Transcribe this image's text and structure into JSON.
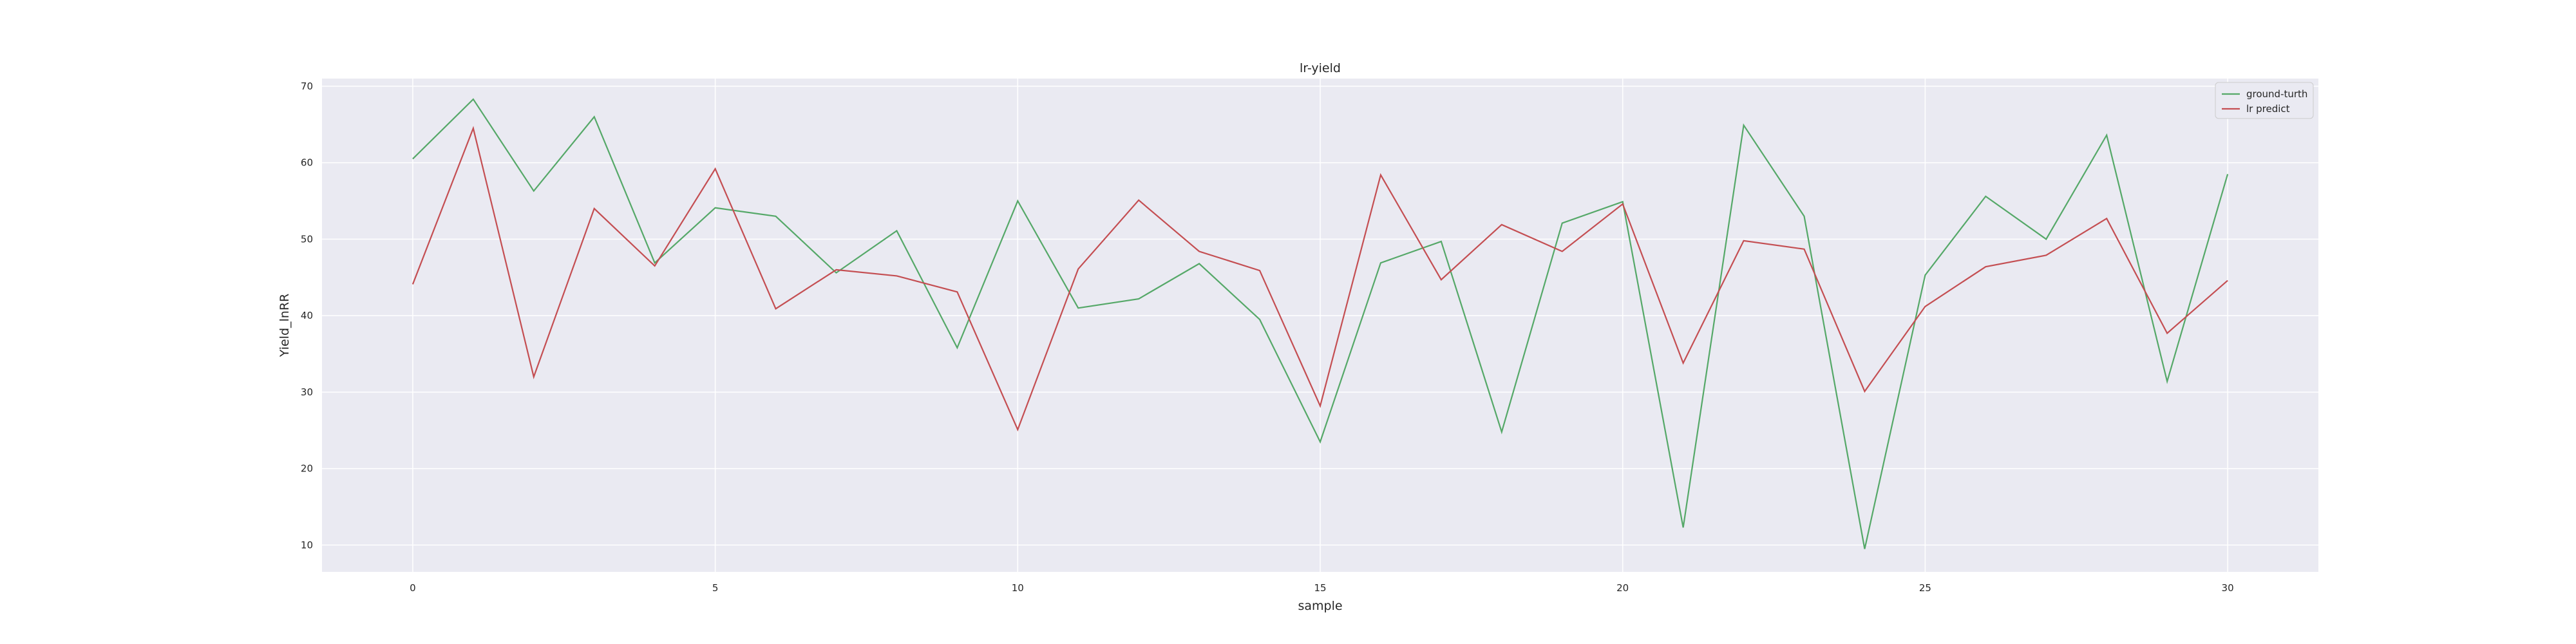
{
  "chart_data": {
    "type": "line",
    "title": "lr-yield",
    "xlabel": "sample",
    "ylabel": "Yield_lnRR",
    "xlim": [
      -1.5,
      31.5
    ],
    "ylim": [
      6.5,
      71.0
    ],
    "xticks": [
      0,
      5,
      10,
      15,
      20,
      25,
      30
    ],
    "yticks": [
      10,
      20,
      30,
      40,
      50,
      60,
      70
    ],
    "grid": true,
    "legend_position": "top-right",
    "x": [
      0,
      1,
      2,
      3,
      4,
      5,
      6,
      7,
      8,
      9,
      10,
      11,
      12,
      13,
      14,
      15,
      16,
      17,
      18,
      19,
      20,
      21,
      22,
      23,
      24,
      25,
      26,
      27,
      28,
      29,
      30
    ],
    "series": [
      {
        "name": "ground-turth",
        "color": "#55a868",
        "values": [
          60.5,
          68.3,
          56.3,
          66.0,
          46.9,
          54.1,
          53.0,
          45.6,
          51.1,
          35.8,
          55.0,
          41.0,
          42.2,
          46.8,
          39.5,
          23.5,
          46.9,
          49.7,
          24.8,
          52.1,
          54.9,
          12.3,
          64.9,
          53.0,
          9.5,
          45.3,
          55.6,
          50.0,
          63.6,
          31.4,
          58.5
        ]
      },
      {
        "name": "lr predict",
        "color": "#c44e52",
        "values": [
          44.1,
          64.5,
          32.0,
          54.0,
          46.5,
          59.2,
          40.9,
          46.0,
          45.2,
          43.1,
          25.1,
          46.1,
          55.1,
          48.4,
          45.9,
          28.2,
          58.4,
          44.7,
          51.9,
          48.4,
          54.6,
          33.8,
          49.8,
          48.7,
          30.1,
          41.2,
          46.4,
          47.9,
          52.7,
          37.7,
          44.6
        ]
      }
    ]
  }
}
